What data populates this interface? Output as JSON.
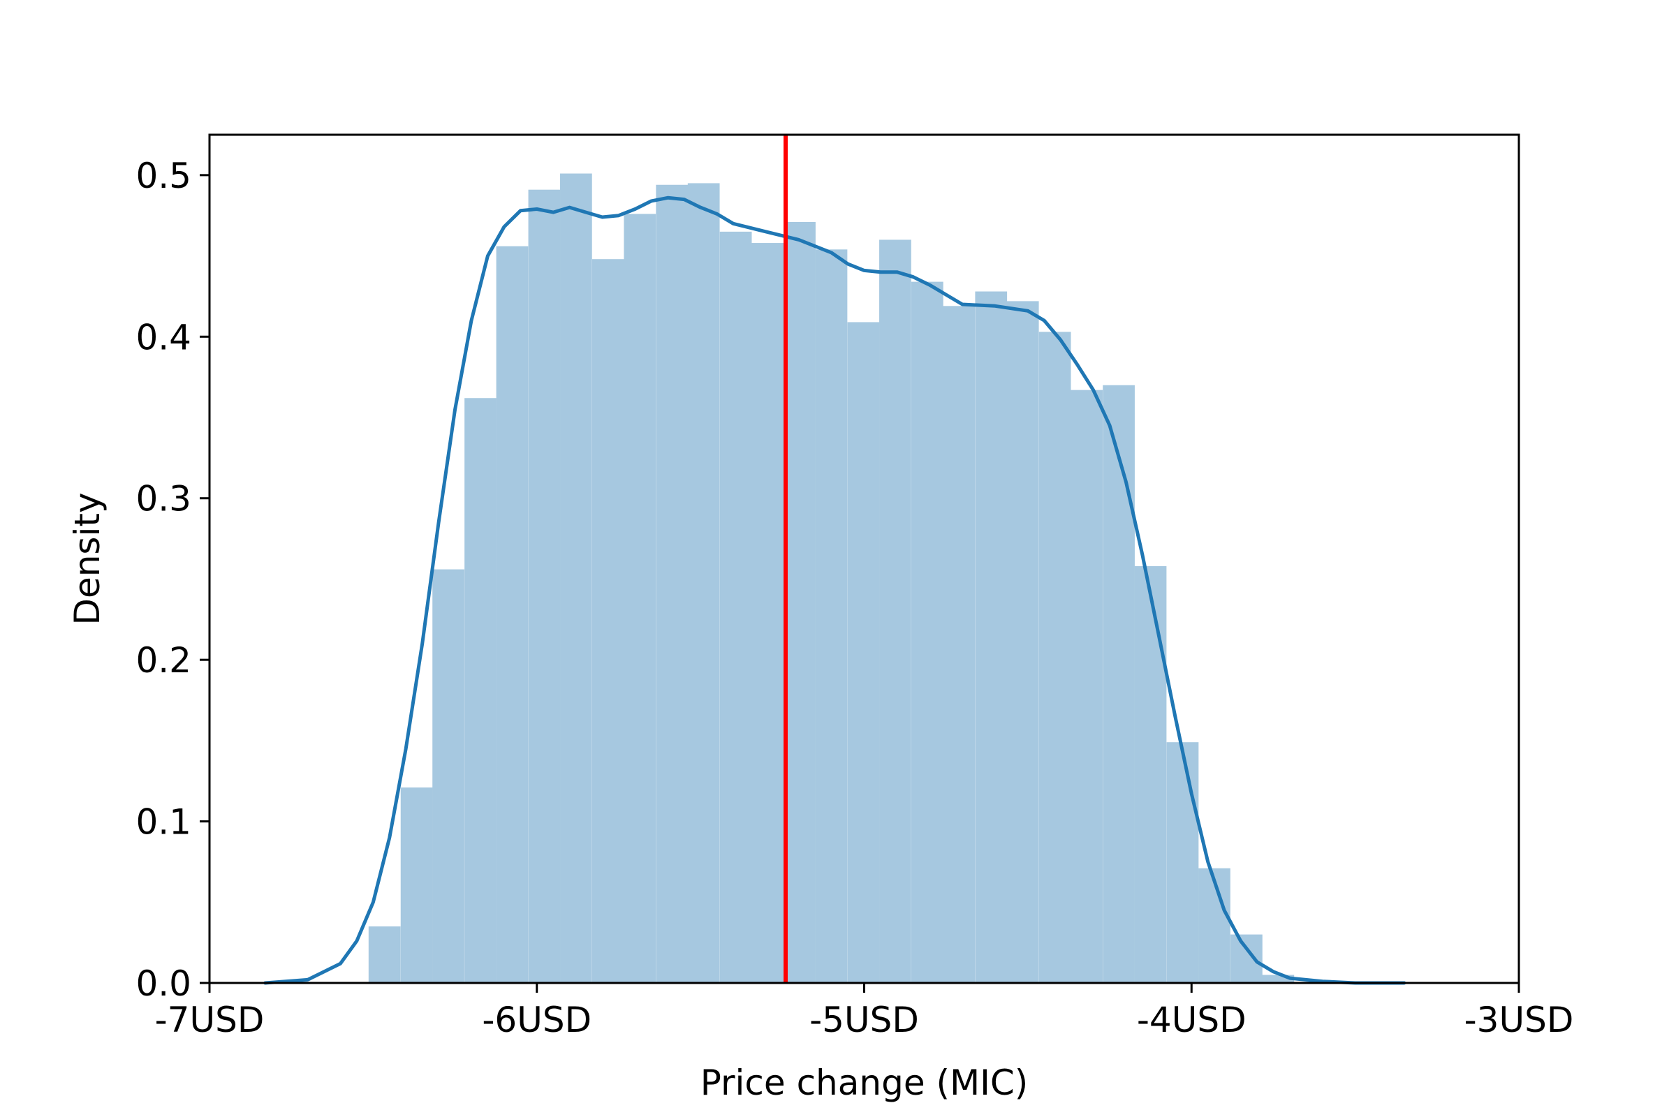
{
  "chart_data": {
    "type": "bar",
    "title": "",
    "xlabel": "Price change (MIC)",
    "ylabel": "Density",
    "xlim": [
      -7,
      -3
    ],
    "ylim": [
      0,
      0.525
    ],
    "x_ticks": [
      -7,
      -6,
      -5,
      -4,
      -3
    ],
    "x_tick_labels": [
      "-7USD",
      "-6USD",
      "-5USD",
      "-4USD",
      "-3USD"
    ],
    "y_ticks": [
      0.0,
      0.1,
      0.2,
      0.3,
      0.4,
      0.5
    ],
    "y_tick_labels": [
      "0.0",
      "0.1",
      "0.2",
      "0.3",
      "0.4",
      "0.5"
    ],
    "grid": false,
    "colors": {
      "bars": "#a6c8e0",
      "kde": "#1f77b4",
      "marker_line": "#ff0000",
      "axes": "#000000"
    },
    "histogram": {
      "bin_width": 0.0975,
      "bin_starts": [
        -6.514,
        -6.416,
        -6.319,
        -6.221,
        -6.124,
        -6.026,
        -5.929,
        -5.831,
        -5.734,
        -5.636,
        -5.539,
        -5.441,
        -5.344,
        -5.246,
        -5.149,
        -5.051,
        -4.954,
        -4.856,
        -4.759,
        -4.661,
        -4.564,
        -4.466,
        -4.369,
        -4.271,
        -4.174,
        -4.076,
        -3.979,
        -3.881,
        -3.784
      ],
      "values": [
        0.035,
        0.121,
        0.256,
        0.362,
        0.456,
        0.491,
        0.501,
        0.448,
        0.476,
        0.494,
        0.495,
        0.465,
        0.458,
        0.471,
        0.454,
        0.409,
        0.46,
        0.434,
        0.419,
        0.428,
        0.422,
        0.403,
        0.367,
        0.37,
        0.258,
        0.149,
        0.071,
        0.03,
        0.005
      ]
    },
    "kde": {
      "x": [
        -6.83,
        -6.7,
        -6.6,
        -6.55,
        -6.5,
        -6.45,
        -6.4,
        -6.35,
        -6.3,
        -6.25,
        -6.2,
        -6.15,
        -6.1,
        -6.05,
        -6.0,
        -5.95,
        -5.9,
        -5.85,
        -5.8,
        -5.75,
        -5.7,
        -5.65,
        -5.6,
        -5.55,
        -5.5,
        -5.45,
        -5.4,
        -5.3,
        -5.2,
        -5.1,
        -5.05,
        -5.0,
        -4.95,
        -4.9,
        -4.85,
        -4.8,
        -4.75,
        -4.7,
        -4.6,
        -4.5,
        -4.45,
        -4.4,
        -4.35,
        -4.3,
        -4.25,
        -4.2,
        -4.15,
        -4.1,
        -4.05,
        -4.0,
        -3.95,
        -3.9,
        -3.85,
        -3.8,
        -3.75,
        -3.7,
        -3.6,
        -3.5,
        -3.35
      ],
      "y": [
        0.0,
        0.002,
        0.012,
        0.026,
        0.05,
        0.09,
        0.145,
        0.21,
        0.285,
        0.355,
        0.41,
        0.45,
        0.468,
        0.478,
        0.479,
        0.477,
        0.48,
        0.477,
        0.474,
        0.475,
        0.479,
        0.484,
        0.486,
        0.485,
        0.48,
        0.476,
        0.47,
        0.465,
        0.46,
        0.452,
        0.445,
        0.441,
        0.44,
        0.44,
        0.437,
        0.432,
        0.426,
        0.42,
        0.419,
        0.416,
        0.41,
        0.398,
        0.383,
        0.367,
        0.345,
        0.31,
        0.265,
        0.215,
        0.165,
        0.117,
        0.075,
        0.045,
        0.026,
        0.013,
        0.007,
        0.003,
        0.001,
        0.0,
        0.0
      ]
    },
    "vline_x": -5.24
  }
}
